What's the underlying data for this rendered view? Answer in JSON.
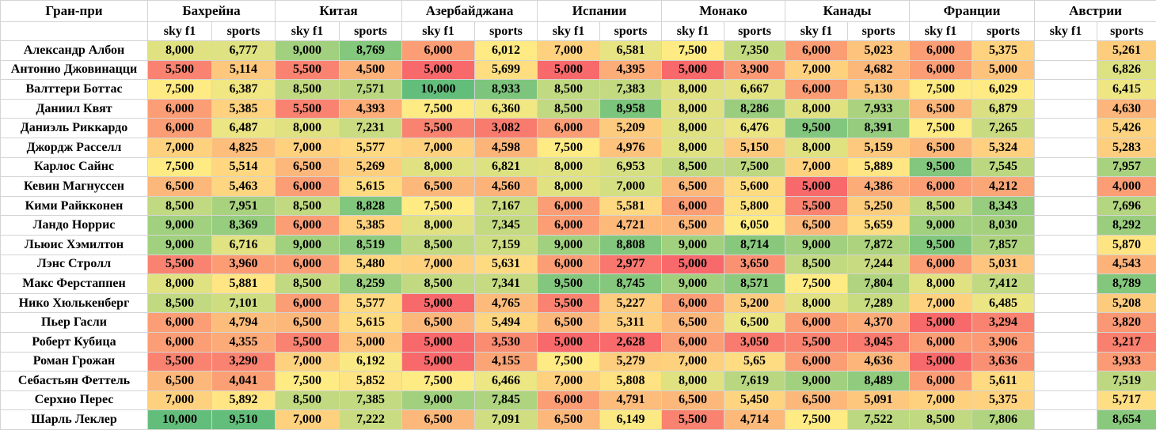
{
  "header": {
    "corner": "Гран-при",
    "races": [
      "Бахрейна",
      "Китая",
      "Азербайджана",
      "Испании",
      "Монако",
      "Канады",
      "Франции",
      "Австрии"
    ],
    "sub_sky": "sky f1",
    "sub_sports": "sports"
  },
  "rows": [
    {
      "name": "Александр Албон",
      "cells": [
        "8,000",
        "6,777",
        "9,000",
        "8,769",
        "6,000",
        "6,012",
        "7,000",
        "6,581",
        "7,500",
        "7,350",
        "6,000",
        "5,023",
        "6,000",
        "5,375",
        "",
        "5,261"
      ]
    },
    {
      "name": "Антонио Джовинацци",
      "cells": [
        "5,500",
        "5,114",
        "5,500",
        "4,500",
        "5,000",
        "5,699",
        "5,000",
        "4,395",
        "5,000",
        "3,900",
        "7,000",
        "4,682",
        "6,000",
        "5,000",
        "",
        "6,826"
      ]
    },
    {
      "name": "Валттери Боттас",
      "cells": [
        "7,500",
        "6,387",
        "8,500",
        "7,571",
        "10,000",
        "8,933",
        "8,500",
        "7,383",
        "8,000",
        "6,667",
        "6,000",
        "5,130",
        "7,500",
        "6,029",
        "",
        "6,415"
      ]
    },
    {
      "name": "Даниил Квят",
      "cells": [
        "6,000",
        "5,385",
        "5,500",
        "4,393",
        "7,500",
        "6,360",
        "8,500",
        "8,958",
        "8,000",
        "8,286",
        "8,000",
        "7,933",
        "6,500",
        "6,879",
        "",
        "4,630"
      ]
    },
    {
      "name": "Даниэль Риккардо",
      "cells": [
        "6,000",
        "6,487",
        "8,000",
        "7,231",
        "5,500",
        "3,082",
        "6,000",
        "5,209",
        "8,000",
        "6,476",
        "9,500",
        "8,391",
        "7,500",
        "7,265",
        "",
        "5,426"
      ]
    },
    {
      "name": "Джордж Расселл",
      "cells": [
        "7,000",
        "4,825",
        "7,000",
        "5,577",
        "7,000",
        "4,598",
        "7,500",
        "4,976",
        "8,000",
        "5,150",
        "8,000",
        "5,159",
        "6,500",
        "5,324",
        "",
        "5,283"
      ]
    },
    {
      "name": "Карлос Сайнс",
      "cells": [
        "7,500",
        "5,514",
        "6,500",
        "5,269",
        "8,000",
        "6,821",
        "8,000",
        "6,953",
        "8,500",
        "7,500",
        "7,000",
        "5,889",
        "9,500",
        "7,545",
        "",
        "7,957"
      ]
    },
    {
      "name": "Кевин Магнуссен",
      "cells": [
        "6,500",
        "5,463",
        "6,000",
        "5,615",
        "6,500",
        "4,560",
        "8,000",
        "7,000",
        "6,500",
        "5,600",
        "5,000",
        "4,386",
        "6,000",
        "4,212",
        "",
        "4,000"
      ]
    },
    {
      "name": "Кими Райкконен",
      "cells": [
        "8,500",
        "7,951",
        "8,500",
        "8,828",
        "7,500",
        "7,167",
        "6,000",
        "5,581",
        "6,000",
        "5,800",
        "5,500",
        "5,250",
        "8,500",
        "8,343",
        "",
        "7,696"
      ]
    },
    {
      "name": "Ландо Норрис",
      "cells": [
        "9,000",
        "8,369",
        "6,000",
        "5,385",
        "8,000",
        "7,345",
        "6,000",
        "4,721",
        "6,500",
        "6,050",
        "6,500",
        "5,659",
        "9,000",
        "8,030",
        "",
        "8,292"
      ]
    },
    {
      "name": "Льюис Хэмилтон",
      "cells": [
        "9,000",
        "6,716",
        "9,000",
        "8,519",
        "8,500",
        "7,159",
        "9,000",
        "8,808",
        "9,000",
        "8,714",
        "9,000",
        "7,872",
        "9,500",
        "7,857",
        "",
        "5,870"
      ]
    },
    {
      "name": "Лэнс Стролл",
      "cells": [
        "5,500",
        "3,960",
        "6,000",
        "5,480",
        "7,000",
        "5,631",
        "6,000",
        "2,977",
        "5,000",
        "3,650",
        "8,500",
        "7,244",
        "6,000",
        "5,031",
        "",
        "4,543"
      ]
    },
    {
      "name": "Макс Ферстаппен",
      "cells": [
        "8,000",
        "5,881",
        "8,500",
        "8,259",
        "8,500",
        "7,341",
        "9,500",
        "8,745",
        "9,000",
        "8,571",
        "7,500",
        "7,804",
        "8,000",
        "7,412",
        "",
        "8,789"
      ]
    },
    {
      "name": "Нико Хюлькенберг",
      "cells": [
        "8,500",
        "7,101",
        "6,000",
        "5,577",
        "5,000",
        "4,765",
        "5,500",
        "5,227",
        "6,000",
        "5,200",
        "8,000",
        "7,289",
        "7,000",
        "6,485",
        "",
        "5,208"
      ]
    },
    {
      "name": "Пьер Гасли",
      "cells": [
        "6,000",
        "4,794",
        "6,500",
        "5,615",
        "6,500",
        "5,494",
        "6,500",
        "5,311",
        "6,500",
        "6,500",
        "6,000",
        "4,370",
        "5,000",
        "3,294",
        "",
        "3,820"
      ]
    },
    {
      "name": "Роберт Кубица",
      "cells": [
        "6,000",
        "4,355",
        "5,500",
        "5,000",
        "5,000",
        "3,530",
        "5,000",
        "2,628",
        "6,000",
        "3,050",
        "5,500",
        "3,045",
        "6,000",
        "3,906",
        "",
        "3,217"
      ]
    },
    {
      "name": "Роман Грожан",
      "cells": [
        "5,500",
        "3,290",
        "7,000",
        "6,192",
        "5,000",
        "4,155",
        "7,500",
        "5,279",
        "7,000",
        "5,65",
        "6,000",
        "4,636",
        "5,000",
        "3,636",
        "",
        "3,933"
      ]
    },
    {
      "name": "Себастьян Феттель",
      "cells": [
        "6,500",
        "4,041",
        "7,500",
        "5,852",
        "7,500",
        "6,466",
        "7,000",
        "5,808",
        "8,000",
        "7,619",
        "9,000",
        "8,489",
        "6,000",
        "5,611",
        "",
        "7,519"
      ]
    },
    {
      "name": "Серхио Перес",
      "cells": [
        "7,000",
        "5,892",
        "8,500",
        "7,385",
        "9,000",
        "7,845",
        "6,000",
        "4,791",
        "6,500",
        "5,450",
        "6,500",
        "5,091",
        "7,000",
        "5,375",
        "",
        "5,717"
      ]
    },
    {
      "name": "Шарль Леклер",
      "cells": [
        "10,000",
        "9,510",
        "7,000",
        "7,222",
        "6,500",
        "7,091",
        "6,500",
        "6,149",
        "5,500",
        "4,714",
        "7,500",
        "7,522",
        "8,500",
        "7,806",
        "",
        "8,654"
      ]
    }
  ]
}
